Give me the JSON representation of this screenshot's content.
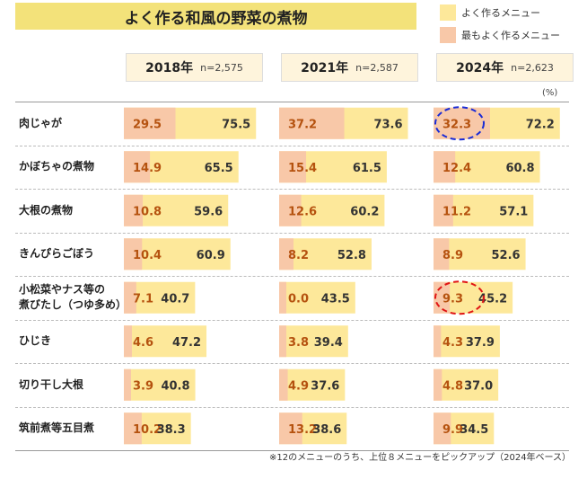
{
  "title": "よく作る和風の野菜の煮物",
  "legend": {
    "often": {
      "label": "よく作るメニュー",
      "color": "#fde89a"
    },
    "most": {
      "label": "最もよく作るメニュー",
      "color": "#f8c8a8"
    }
  },
  "unit": "(%)",
  "note": "※12のメニューのうち、上位８メニューをピックアップ（2024年ベース）",
  "chart_data": {
    "type": "bar",
    "categories": [
      "肉じゃが",
      "かぼちゃの煮物",
      "大根の煮物",
      "きんぴらごぼう",
      "小松菜やナス等の\n煮びたし（つゆ多め）",
      "ひじき",
      "切り干し大根",
      "筑前煮等五目煮"
    ],
    "years": [
      {
        "year": "2018年",
        "n": "n=2,575"
      },
      {
        "year": "2021年",
        "n": "n=2,587"
      },
      {
        "year": "2024年",
        "n": "n=2,623"
      }
    ],
    "series": [
      {
        "name": "よく作るメニュー",
        "values": [
          [
            75.5,
            73.6,
            72.2
          ],
          [
            65.5,
            61.5,
            60.8
          ],
          [
            59.6,
            60.2,
            57.1
          ],
          [
            60.9,
            52.8,
            52.6
          ],
          [
            40.7,
            43.5,
            45.2
          ],
          [
            47.2,
            39.4,
            37.9
          ],
          [
            40.8,
            37.6,
            37.0
          ],
          [
            38.3,
            38.6,
            34.5
          ]
        ]
      },
      {
        "name": "最もよく作るメニュー",
        "values": [
          [
            29.5,
            37.2,
            32.3
          ],
          [
            14.9,
            15.4,
            12.4
          ],
          [
            10.8,
            12.6,
            11.2
          ],
          [
            10.4,
            8.2,
            8.9
          ],
          [
            7.1,
            0.0,
            9.3
          ],
          [
            4.6,
            3.8,
            4.3
          ],
          [
            3.9,
            4.9,
            4.8
          ],
          [
            10.2,
            13.2,
            9.9
          ]
        ]
      }
    ],
    "highlight_circles": [
      {
        "row": 0,
        "year_index": 2,
        "color": "#1a2bd6"
      },
      {
        "row": 4,
        "year_index": 2,
        "color": "#e01515"
      }
    ]
  }
}
